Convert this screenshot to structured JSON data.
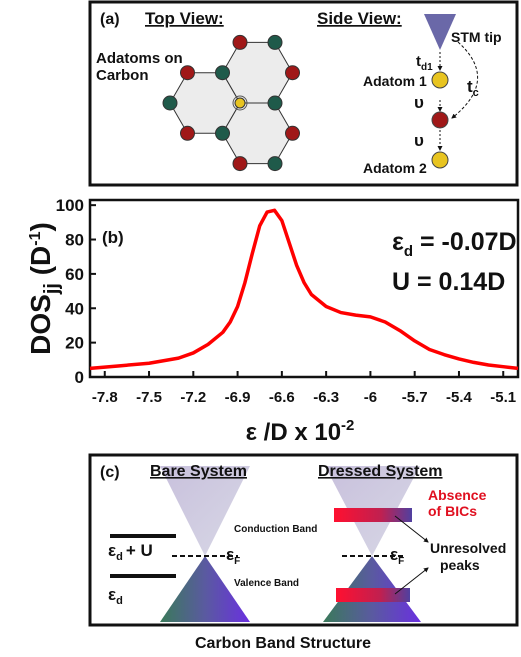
{
  "panel_a": {
    "label": "(a)",
    "top_view": "Top View:",
    "side_view": "Side View:",
    "adatoms_line1": "Adatoms on",
    "adatoms_line2": "Carbon",
    "stm_tip": "STM tip",
    "td1_main": "t",
    "td1_sub": "d1",
    "tc_main": "t",
    "tc_sub": "c",
    "adatom1": "Adatom 1",
    "upsilon1": "υ",
    "upsilon2": "υ",
    "adatom2": "Adatom 2"
  },
  "chart_data": {
    "type": "line",
    "panel_label": "(b)",
    "y_label": {
      "main": "DOS",
      "sub": "jj",
      "unit_open": " (D",
      "unit_sup": "-1",
      "unit_close": ")"
    },
    "x_label": {
      "main": "ε /D x 10",
      "sup": "-2"
    },
    "annotations": {
      "eps_main": "ε",
      "eps_sub": "d",
      "eps_value": " = -0.07D",
      "u_text": "U = 0.14D"
    },
    "x": [
      -7.9,
      -7.7,
      -7.5,
      -7.3,
      -7.2,
      -7.1,
      -7.0,
      -6.95,
      -6.9,
      -6.85,
      -6.8,
      -6.75,
      -6.7,
      -6.65,
      -6.6,
      -6.55,
      -6.5,
      -6.45,
      -6.4,
      -6.3,
      -6.2,
      -6.1,
      -6.0,
      -5.9,
      -5.8,
      -5.7,
      -5.6,
      -5.5,
      -5.4,
      -5.3,
      -5.2,
      -5.1,
      -5.0
    ],
    "series": [
      {
        "name": "DOS",
        "color": "#ff0000",
        "values": [
          5,
          6.5,
          8,
          11,
          14,
          19,
          26,
          32,
          41,
          55,
          72,
          88,
          96,
          97,
          91,
          78,
          65,
          55,
          48,
          41,
          37.5,
          36,
          35,
          32,
          27,
          21,
          16,
          13,
          10.5,
          8.5,
          7,
          6,
          5
        ]
      }
    ],
    "xlim": [
      -7.9,
      -5.0
    ],
    "ylim": [
      0,
      103
    ],
    "xticks": [
      -7.8,
      -7.5,
      -7.2,
      -6.9,
      -6.6,
      -6.3,
      -6.0,
      -5.7,
      -5.4,
      -5.1
    ],
    "yticks": [
      0,
      20,
      40,
      60,
      80,
      100
    ],
    "grid": false
  },
  "panel_c": {
    "label": "(c)",
    "bare": "Bare System",
    "dressed": "Dressed System",
    "absence_line1": "Absence",
    "absence_line2": "of BICs",
    "conduction": "Conduction Band",
    "valence": "Valence Band",
    "edu_main": "ε",
    "edu_sub": "d",
    "edu_rest": "+ U",
    "ed_main": "ε",
    "ed_sub": "d",
    "ef1_main": "ε",
    "ef1_sub": "F",
    "ef2_main": "ε",
    "ef2_sub": "F",
    "unresolved_line1": "Unresolved",
    "unresolved_line2": "peaks",
    "caption": "Carbon Band Structure"
  }
}
